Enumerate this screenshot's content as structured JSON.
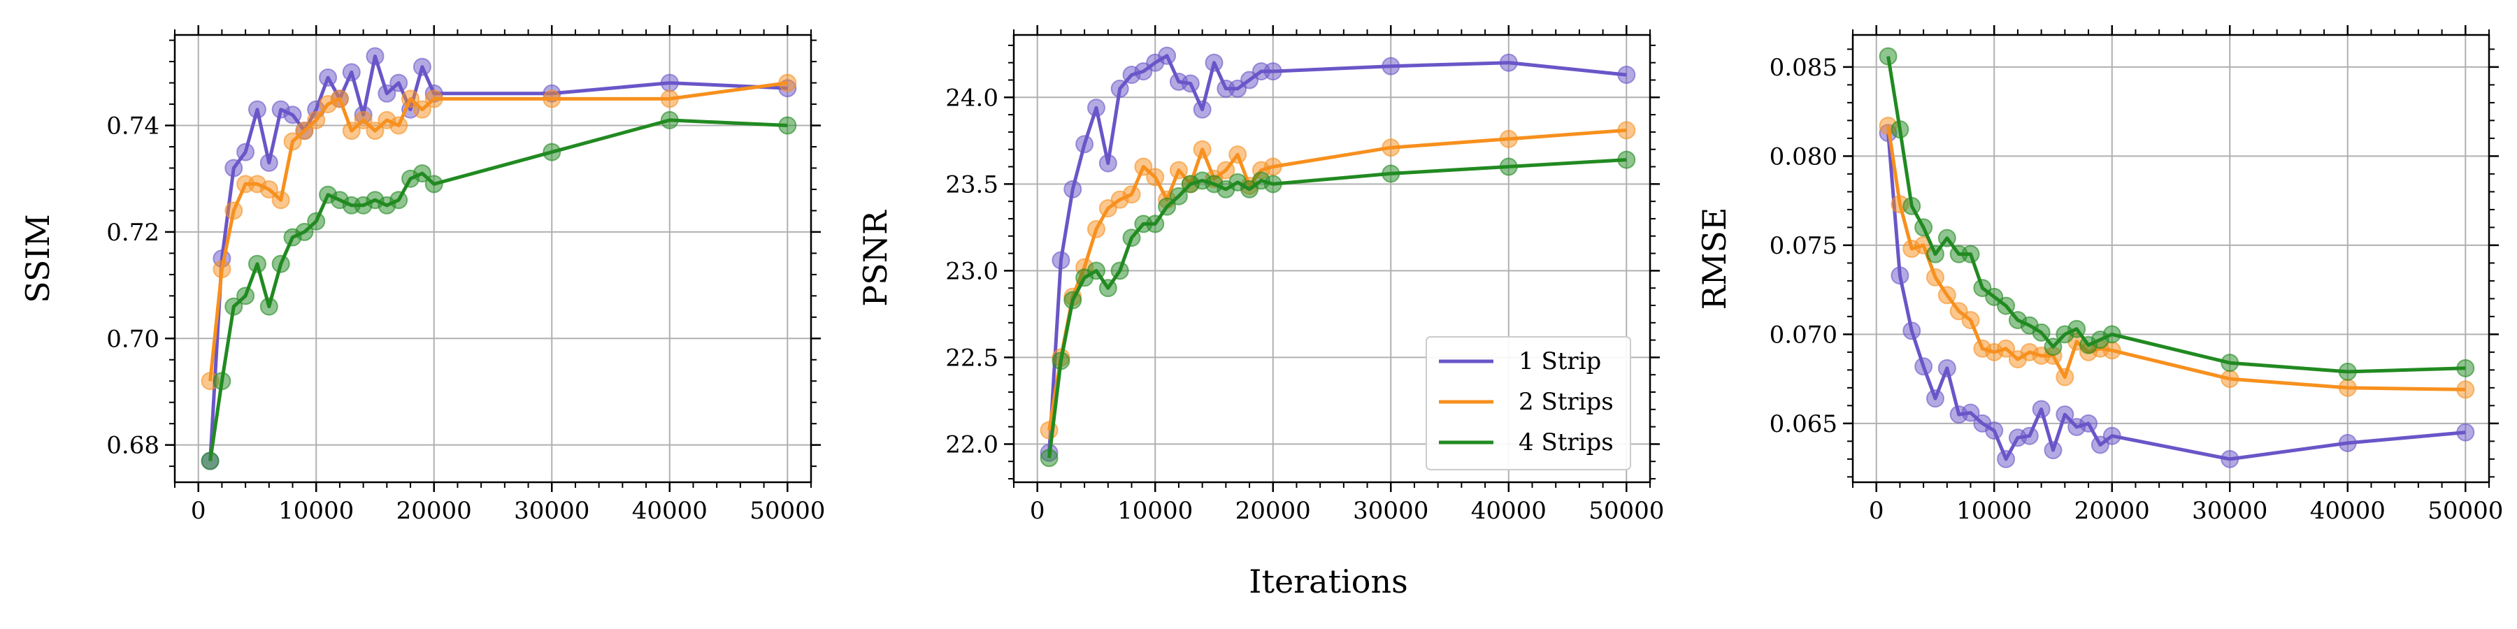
{
  "figure": {
    "shared_xlabel": "Iterations",
    "colors": {
      "1 Strip": "#6a55c8",
      "2 Strips": "#f7901e",
      "4 Strips": "#218a21"
    }
  },
  "legend": {
    "location": "lower-right of middle panel",
    "entries": [
      "1 Strip",
      "2 Strips",
      "4 Strips"
    ]
  },
  "chart_data": [
    {
      "type": "line",
      "ylabel": "SSIM",
      "xlim": [
        -2000,
        52000
      ],
      "ylim": [
        0.673,
        0.757
      ],
      "xticks": [
        0,
        10000,
        20000,
        30000,
        40000,
        50000
      ],
      "xtick_labels": [
        "0",
        "10000",
        "20000",
        "30000",
        "40000",
        "50000"
      ],
      "yticks": [
        0.68,
        0.7,
        0.72,
        0.74
      ],
      "ytick_labels": [
        "0.68",
        "0.70",
        "0.72",
        "0.74"
      ],
      "grid": true,
      "series": [
        {
          "name": "1 Strip",
          "x": [
            1000,
            2000,
            3000,
            4000,
            5000,
            6000,
            7000,
            8000,
            9000,
            10000,
            11000,
            12000,
            13000,
            14000,
            15000,
            16000,
            17000,
            18000,
            19000,
            20000,
            30000,
            40000,
            50000
          ],
          "y": [
            0.677,
            0.715,
            0.732,
            0.735,
            0.743,
            0.733,
            0.743,
            0.742,
            0.739,
            0.743,
            0.749,
            0.745,
            0.75,
            0.742,
            0.753,
            0.746,
            0.748,
            0.743,
            0.751,
            0.746,
            0.746,
            0.748,
            0.747
          ]
        },
        {
          "name": "2 Strips",
          "x": [
            1000,
            2000,
            3000,
            4000,
            5000,
            6000,
            7000,
            8000,
            9000,
            10000,
            11000,
            12000,
            13000,
            14000,
            15000,
            16000,
            17000,
            18000,
            19000,
            20000,
            30000,
            40000,
            50000
          ],
          "y": [
            0.692,
            0.713,
            0.724,
            0.729,
            0.729,
            0.728,
            0.726,
            0.737,
            0.739,
            0.741,
            0.744,
            0.745,
            0.739,
            0.741,
            0.739,
            0.741,
            0.74,
            0.745,
            0.743,
            0.745,
            0.745,
            0.745,
            0.748
          ]
        },
        {
          "name": "4 Strips",
          "x": [
            1000,
            2000,
            3000,
            4000,
            5000,
            6000,
            7000,
            8000,
            9000,
            10000,
            11000,
            12000,
            13000,
            14000,
            15000,
            16000,
            17000,
            18000,
            19000,
            20000,
            30000,
            40000,
            50000
          ],
          "y": [
            0.677,
            0.692,
            0.706,
            0.708,
            0.714,
            0.706,
            0.714,
            0.719,
            0.72,
            0.722,
            0.727,
            0.726,
            0.725,
            0.725,
            0.726,
            0.725,
            0.726,
            0.73,
            0.731,
            0.729,
            0.735,
            0.741,
            0.74
          ]
        }
      ]
    },
    {
      "type": "line",
      "ylabel": "PSNR",
      "xlim": [
        -2000,
        52000
      ],
      "ylim": [
        21.78,
        24.36
      ],
      "xticks": [
        0,
        10000,
        20000,
        30000,
        40000,
        50000
      ],
      "xtick_labels": [
        "0",
        "10000",
        "20000",
        "30000",
        "40000",
        "50000"
      ],
      "yticks": [
        22.0,
        22.5,
        23.0,
        23.5,
        24.0
      ],
      "ytick_labels": [
        "22.0",
        "22.5",
        "23.0",
        "23.5",
        "24.0"
      ],
      "grid": true,
      "series": [
        {
          "name": "1 Strip",
          "x": [
            1000,
            2000,
            3000,
            4000,
            5000,
            6000,
            7000,
            8000,
            9000,
            10000,
            11000,
            12000,
            13000,
            14000,
            15000,
            16000,
            17000,
            18000,
            19000,
            20000,
            30000,
            40000,
            50000
          ],
          "y": [
            21.95,
            23.06,
            23.47,
            23.73,
            23.94,
            23.62,
            24.05,
            24.13,
            24.15,
            24.2,
            24.24,
            24.09,
            24.08,
            23.93,
            24.2,
            24.05,
            24.05,
            24.1,
            24.15,
            24.15,
            24.18,
            24.2,
            24.13
          ]
        },
        {
          "name": "2 Strips",
          "x": [
            1000,
            2000,
            3000,
            4000,
            5000,
            6000,
            7000,
            8000,
            9000,
            10000,
            11000,
            12000,
            13000,
            14000,
            15000,
            16000,
            17000,
            18000,
            19000,
            20000,
            30000,
            40000,
            50000
          ],
          "y": [
            22.08,
            22.5,
            22.85,
            23.02,
            23.24,
            23.36,
            23.41,
            23.44,
            23.6,
            23.54,
            23.41,
            23.58,
            23.5,
            23.7,
            23.53,
            23.58,
            23.67,
            23.49,
            23.58,
            23.6,
            23.71,
            23.76,
            23.81
          ]
        },
        {
          "name": "4 Strips",
          "x": [
            1000,
            2000,
            3000,
            4000,
            5000,
            6000,
            7000,
            8000,
            9000,
            10000,
            11000,
            12000,
            13000,
            14000,
            15000,
            16000,
            17000,
            18000,
            19000,
            20000,
            30000,
            40000,
            50000
          ],
          "y": [
            21.92,
            22.48,
            22.83,
            22.96,
            23.0,
            22.9,
            23.0,
            23.19,
            23.27,
            23.27,
            23.37,
            23.43,
            23.5,
            23.52,
            23.5,
            23.47,
            23.51,
            23.47,
            23.52,
            23.5,
            23.56,
            23.6,
            23.64
          ]
        }
      ]
    },
    {
      "type": "line",
      "ylabel": "RMSE",
      "xlim": [
        -2000,
        52000
      ],
      "ylim": [
        0.0617,
        0.0868
      ],
      "xticks": [
        0,
        10000,
        20000,
        30000,
        40000,
        50000
      ],
      "xtick_labels": [
        "0",
        "10000",
        "20000",
        "30000",
        "40000",
        "50000"
      ],
      "yticks": [
        0.065,
        0.07,
        0.075,
        0.08,
        0.085
      ],
      "ytick_labels": [
        "0.065",
        "0.070",
        "0.075",
        "0.080",
        "0.085"
      ],
      "grid": true,
      "series": [
        {
          "name": "1 Strip",
          "x": [
            1000,
            2000,
            3000,
            4000,
            5000,
            6000,
            7000,
            8000,
            9000,
            10000,
            11000,
            12000,
            13000,
            14000,
            15000,
            16000,
            17000,
            18000,
            19000,
            20000,
            30000,
            40000,
            50000
          ],
          "y": [
            0.0813,
            0.0733,
            0.0702,
            0.0682,
            0.0664,
            0.0681,
            0.0655,
            0.0656,
            0.065,
            0.0646,
            0.063,
            0.0642,
            0.0643,
            0.0658,
            0.0635,
            0.0655,
            0.0648,
            0.065,
            0.0638,
            0.0643,
            0.063,
            0.0639,
            0.0645
          ]
        },
        {
          "name": "2 Strips",
          "x": [
            1000,
            2000,
            3000,
            4000,
            5000,
            6000,
            7000,
            8000,
            9000,
            10000,
            11000,
            12000,
            13000,
            14000,
            15000,
            16000,
            17000,
            18000,
            19000,
            20000,
            30000,
            40000,
            50000
          ],
          "y": [
            0.0817,
            0.0773,
            0.0748,
            0.075,
            0.0732,
            0.0722,
            0.0713,
            0.0708,
            0.0692,
            0.069,
            0.0692,
            0.0686,
            0.069,
            0.0688,
            0.0688,
            0.0676,
            0.0696,
            0.069,
            0.0692,
            0.0691,
            0.0675,
            0.067,
            0.0669
          ]
        },
        {
          "name": "4 Strips",
          "x": [
            1000,
            2000,
            3000,
            4000,
            5000,
            6000,
            7000,
            8000,
            9000,
            10000,
            11000,
            12000,
            13000,
            14000,
            15000,
            16000,
            17000,
            18000,
            19000,
            20000,
            30000,
            40000,
            50000
          ],
          "y": [
            0.0856,
            0.0815,
            0.0772,
            0.076,
            0.0745,
            0.0754,
            0.0745,
            0.0745,
            0.0726,
            0.0721,
            0.0716,
            0.0708,
            0.0705,
            0.0701,
            0.0693,
            0.07,
            0.0703,
            0.0694,
            0.0697,
            0.07,
            0.0684,
            0.0679,
            0.0681
          ]
        }
      ]
    }
  ]
}
